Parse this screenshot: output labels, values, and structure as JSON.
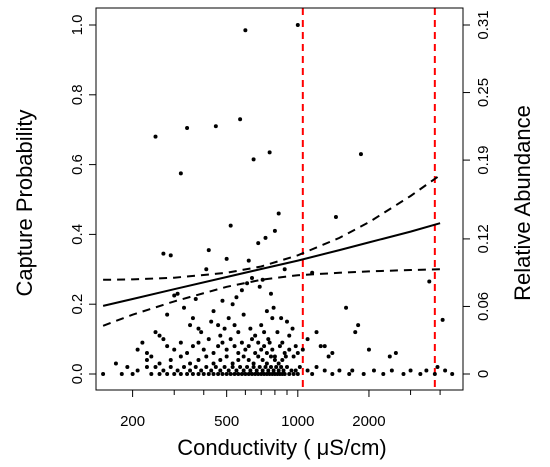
{
  "chart_data": {
    "type": "scatter",
    "xlabel": "Conductivity ( μS/cm)",
    "ylabel": "Capture Probability",
    "y2label": "Relative Abundance",
    "x_scale": "log",
    "xlim": [
      140,
      5000
    ],
    "ylim": [
      0,
      1.0
    ],
    "x_ticks": [
      200,
      500,
      1000,
      2000
    ],
    "x_minor_ticks": [
      300,
      400,
      600,
      700,
      800,
      900,
      3000,
      4000
    ],
    "y_ticks": [
      0.0,
      0.2,
      0.4,
      0.6,
      0.8,
      1.0
    ],
    "y_tick_labels": [
      "0.0",
      "0.2",
      "0.4",
      "0.6",
      "0.8",
      "1.0"
    ],
    "y2_ticks": [
      0,
      0.06,
      0.12,
      0.19,
      0.25,
      0.31
    ],
    "y2_tick_labels": [
      "0",
      "0.06",
      "0.12",
      "0.19",
      "0.25",
      "0.31"
    ],
    "y2lim": [
      0,
      0.31
    ],
    "grid": false,
    "legend": "none",
    "reference_lines": [
      {
        "x": 1050,
        "color": "#ff0000",
        "style": "dashed"
      },
      {
        "x": 3800,
        "color": "#ff0000",
        "style": "dashed"
      }
    ],
    "series": [
      {
        "kind": "fitted-line",
        "style": "solid",
        "color": "#000000",
        "x": [
          150,
          200,
          300,
          500,
          700,
          1000,
          1500,
          2000,
          3000,
          4000
        ],
        "y": [
          0.195,
          0.215,
          0.243,
          0.278,
          0.301,
          0.325,
          0.355,
          0.377,
          0.408,
          0.432
        ]
      },
      {
        "kind": "upper-confidence",
        "style": "dashed",
        "color": "#000000",
        "x": [
          150,
          200,
          300,
          500,
          700,
          1000,
          1500,
          2000,
          3000,
          4000
        ],
        "y": [
          0.27,
          0.271,
          0.276,
          0.29,
          0.308,
          0.34,
          0.39,
          0.435,
          0.51,
          0.57
        ]
      },
      {
        "kind": "lower-confidence",
        "style": "dashed",
        "color": "#000000",
        "x": [
          150,
          200,
          300,
          500,
          700,
          1000,
          1500,
          2000,
          3000,
          4000
        ],
        "y": [
          0.138,
          0.17,
          0.208,
          0.25,
          0.27,
          0.283,
          0.29,
          0.294,
          0.298,
          0.3
        ]
      },
      {
        "kind": "observations",
        "style": "points",
        "color": "#000000",
        "x": [
          600,
          1000,
          250,
          340,
          450,
          570,
          320,
          650,
          760,
          1850,
          270,
          290,
          520,
          830,
          1450,
          730,
          800,
          680,
          420,
          500,
          620,
          880,
          1150,
          1750,
          2450,
          3600,
          4100,
          640,
          370,
          410,
          300,
          310,
          330,
          220,
          280,
          360,
          440,
          460,
          480,
          530,
          550,
          580,
          610,
          690,
          710,
          740,
          770,
          790,
          850,
          900,
          950,
          1100,
          1200,
          1300,
          1400,
          1600,
          1800,
          250,
          260,
          270,
          350,
          380,
          390,
          430,
          470,
          490,
          510,
          540,
          560,
          590,
          630,
          660,
          700,
          720,
          750,
          780,
          820,
          860,
          920,
          980,
          1050,
          1250,
          1350,
          2000,
          2600,
          3900,
          210,
          230,
          240,
          280,
          300,
          320,
          340,
          360,
          380,
          400,
          420,
          440,
          460,
          480,
          500,
          520,
          540,
          560,
          580,
          600,
          620,
          640,
          660,
          680,
          700,
          720,
          740,
          760,
          780,
          800,
          840,
          880,
          920,
          960,
          1000,
          230,
          260,
          290,
          320,
          350,
          380,
          410,
          440,
          470,
          500,
          530,
          560,
          590,
          620,
          650,
          680,
          710,
          740,
          770,
          800,
          830,
          860,
          890,
          170,
          190,
          210,
          230,
          250,
          270,
          290,
          310,
          330,
          350,
          370,
          390,
          410,
          430,
          450,
          470,
          490,
          510,
          530,
          550,
          570,
          590,
          610,
          630,
          650,
          670,
          690,
          710,
          730,
          750,
          770,
          790,
          810,
          830,
          850,
          870,
          900,
          940,
          980,
          1020,
          1100,
          1200,
          1300,
          1500,
          1700,
          2100,
          2500,
          3000,
          3500,
          4200,
          150,
          180,
          200,
          240,
          260,
          280,
          300,
          320,
          340,
          360,
          380,
          400,
          420,
          440,
          460,
          480,
          500,
          520,
          540,
          560,
          580,
          600,
          620,
          640,
          660,
          680,
          700,
          720,
          740,
          760,
          780,
          800,
          820,
          840,
          860,
          880,
          920,
          960,
          1000,
          1150,
          1400,
          1650,
          1900,
          2300,
          2800,
          3300,
          3800,
          4500
        ],
        "y": [
          0.985,
          1.0,
          0.68,
          0.705,
          0.71,
          0.73,
          0.575,
          0.615,
          0.635,
          0.63,
          0.345,
          0.34,
          0.425,
          0.46,
          0.45,
          0.39,
          0.41,
          0.375,
          0.355,
          0.33,
          0.325,
          0.3,
          0.29,
          0.12,
          0.05,
          0.265,
          0.155,
          0.275,
          0.215,
          0.3,
          0.225,
          0.23,
          0.19,
          0.09,
          0.17,
          0.16,
          0.18,
          0.14,
          0.21,
          0.2,
          0.22,
          0.24,
          0.26,
          0.25,
          0.27,
          0.18,
          0.23,
          0.19,
          0.16,
          0.15,
          0.13,
          0.1,
          0.12,
          0.08,
          0.06,
          0.19,
          0.14,
          0.12,
          0.11,
          0.1,
          0.14,
          0.13,
          0.12,
          0.15,
          0.11,
          0.13,
          0.16,
          0.14,
          0.12,
          0.17,
          0.13,
          0.11,
          0.14,
          0.12,
          0.1,
          0.16,
          0.12,
          0.09,
          0.11,
          0.08,
          0.07,
          0.08,
          0.05,
          0.07,
          0.06,
          0.02,
          0.07,
          0.06,
          0.05,
          0.08,
          0.07,
          0.09,
          0.06,
          0.08,
          0.09,
          0.07,
          0.1,
          0.06,
          0.08,
          0.09,
          0.07,
          0.1,
          0.08,
          0.06,
          0.09,
          0.07,
          0.08,
          0.1,
          0.06,
          0.09,
          0.07,
          0.08,
          0.06,
          0.09,
          0.07,
          0.05,
          0.08,
          0.06,
          0.07,
          0.05,
          0.06,
          0.04,
          0.03,
          0.04,
          0.05,
          0.03,
          0.04,
          0.05,
          0.03,
          0.04,
          0.05,
          0.03,
          0.04,
          0.05,
          0.04,
          0.03,
          0.05,
          0.04,
          0.03,
          0.05,
          0.04,
          0.03,
          0.04,
          0.05,
          0.03,
          0.02,
          0.01,
          0.02,
          0.02,
          0.01,
          0.02,
          0.01,
          0.02,
          0.01,
          0.02,
          0.01,
          0.02,
          0.01,
          0.02,
          0.01,
          0.02,
          0.01,
          0.02,
          0.01,
          0.02,
          0.01,
          0.02,
          0.01,
          0.02,
          0.01,
          0.02,
          0.01,
          0.02,
          0.01,
          0.02,
          0.01,
          0.02,
          0.01,
          0.02,
          0.01,
          0.02,
          0.01,
          0.01,
          0.02,
          0.01,
          0.02,
          0.01,
          0.01,
          0.01,
          0.01,
          0.01,
          0.01,
          0.01,
          0.01,
          0.0,
          0.0,
          0.0,
          0.0,
          0.0,
          0.0,
          0.0,
          0.0,
          0.0,
          0.0,
          0.0,
          0.0,
          0.0,
          0.0,
          0.0,
          0.0,
          0.0,
          0.0,
          0.0,
          0.0,
          0.0,
          0.0,
          0.0,
          0.0,
          0.0,
          0.0,
          0.0,
          0.0,
          0.0,
          0.0,
          0.0,
          0.0,
          0.0,
          0.0,
          0.0,
          0.0,
          0.0,
          0.0,
          0.0,
          0.0,
          0.0,
          0.0,
          0.0,
          0.0,
          0.0,
          0.0,
          0.0,
          0.0
        ]
      }
    ]
  }
}
